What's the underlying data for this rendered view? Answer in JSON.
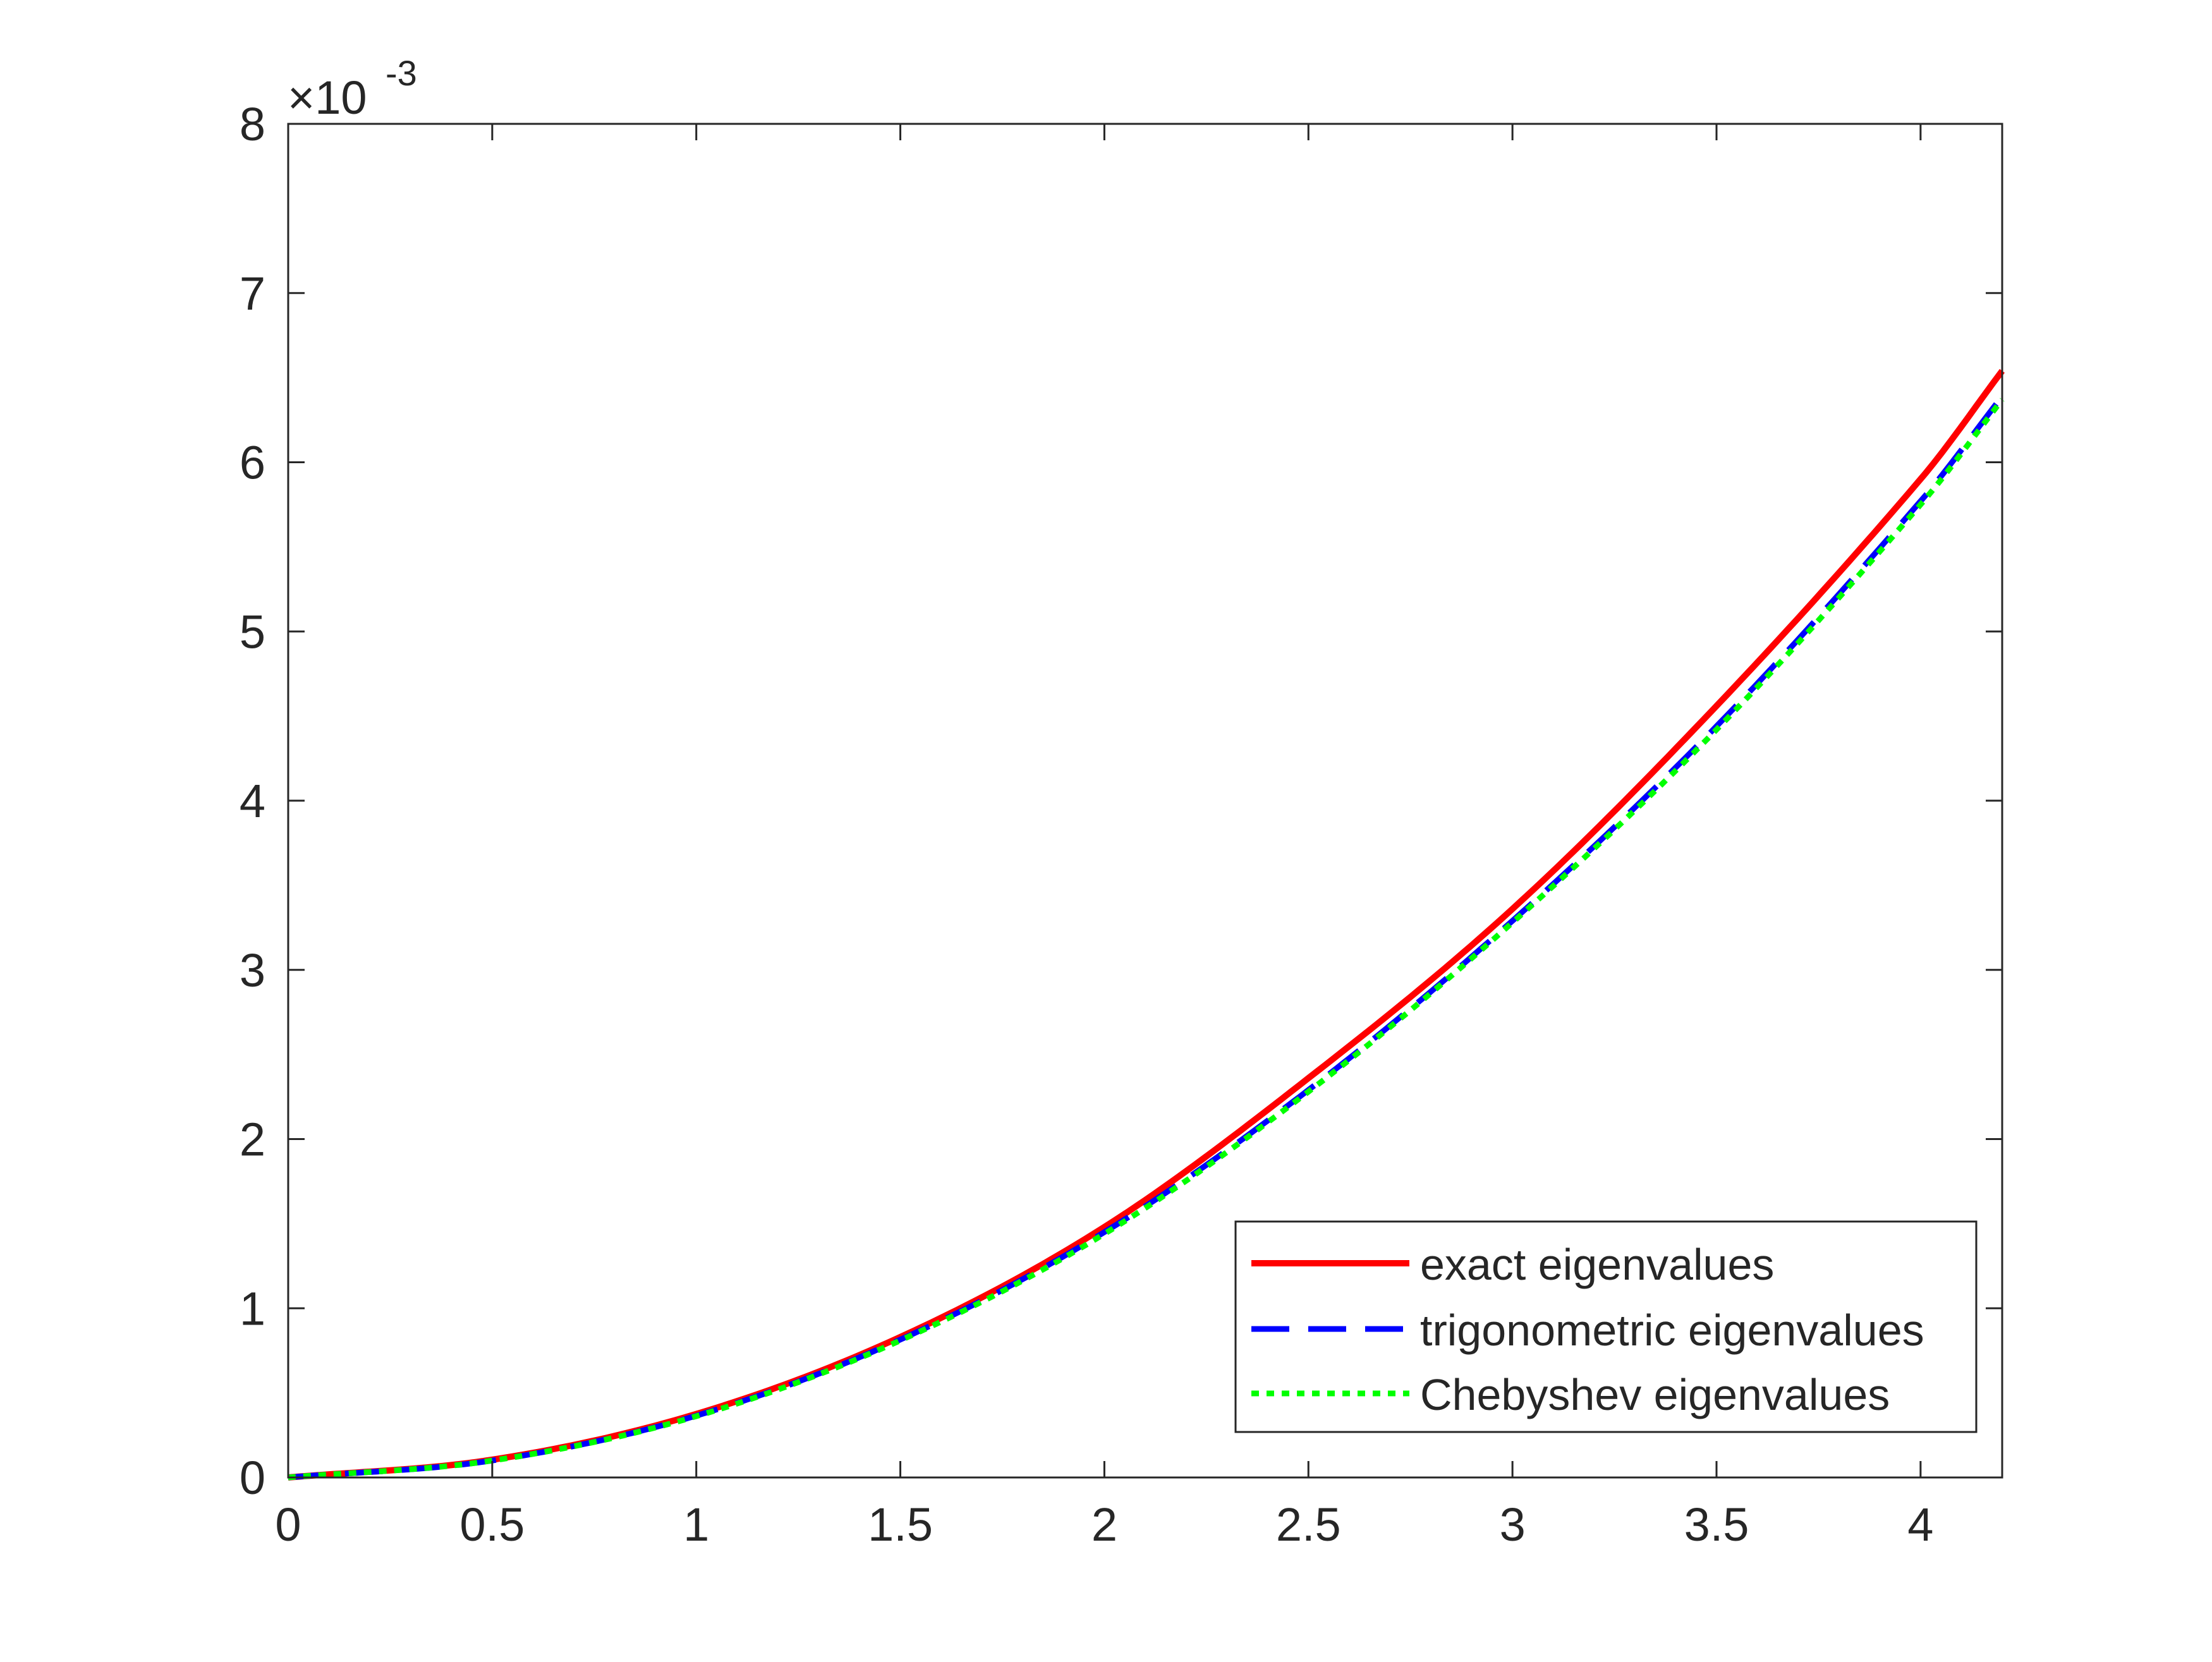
{
  "chart_data": {
    "type": "line",
    "title": "",
    "xlabel": "",
    "ylabel": "",
    "xlim": [
      0,
      4.2
    ],
    "ylim": [
      0,
      0.008
    ],
    "x_ticks": [
      0,
      0.5,
      1,
      1.5,
      2,
      2.5,
      3,
      3.5,
      4
    ],
    "x_tick_labels": [
      "0",
      "0.5",
      "1",
      "1.5",
      "2",
      "2.5",
      "3",
      "3.5",
      "4"
    ],
    "y_ticks": [
      0,
      0.001,
      0.002,
      0.003,
      0.004,
      0.005,
      0.006,
      0.007,
      0.008
    ],
    "y_tick_labels": [
      "0",
      "1",
      "2",
      "3",
      "4",
      "5",
      "6",
      "7",
      "8"
    ],
    "y_exponent": {
      "base": "×10",
      "power": "-3"
    },
    "grid": false,
    "legend_position": "bottom-right",
    "x": [
      0,
      0.5,
      1,
      1.5,
      2,
      2.5,
      3,
      3.5,
      4,
      4.2
    ],
    "series": [
      {
        "name": "exact eigenvalues",
        "color": "#ff0000",
        "style": "solid",
        "values": [
          0,
          0.000105,
          0.000375,
          0.00083,
          0.00148,
          0.00236,
          0.00336,
          0.00456,
          0.0059,
          0.00654
        ]
      },
      {
        "name": "trigonometric eigenvalues",
        "color": "#0000ff",
        "style": "dashed",
        "values": [
          0,
          0.0001,
          0.000365,
          0.000815,
          0.00145,
          0.00229,
          0.00329,
          0.00444,
          0.00577,
          0.00639
        ]
      },
      {
        "name": "Chebyshev eigenvalues",
        "color": "#00ff00",
        "style": "dotted",
        "values": [
          0,
          0.0001,
          0.000362,
          0.00081,
          0.00144,
          0.00228,
          0.00328,
          0.00442,
          0.00575,
          0.00637
        ]
      }
    ]
  }
}
